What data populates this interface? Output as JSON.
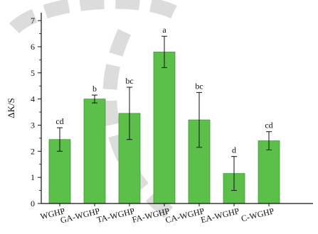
{
  "chart_data": {
    "type": "bar",
    "categories": [
      "WGHP",
      "GA-WGHP",
      "TA-WGHP",
      "FA-WGHP",
      "CA-WGHP",
      "EA-WGHP",
      "C-WGHP"
    ],
    "series": [
      {
        "values": [
          2.45,
          4.0,
          3.45,
          5.8,
          3.2,
          1.15,
          2.4
        ],
        "error": [
          0.45,
          0.15,
          1.0,
          0.6,
          1.05,
          0.65,
          0.35
        ],
        "labels": [
          "cd",
          "b",
          "bc",
          "a",
          "bc",
          "d",
          "cd"
        ]
      }
    ],
    "title": "",
    "xlabel": "",
    "ylabel": "ΔK/S",
    "ylim": [
      0,
      7.3
    ],
    "yticks": [
      0,
      1,
      2,
      3,
      4,
      5,
      6,
      7
    ],
    "grid": false,
    "legend": "none",
    "bar_color": "#5cbf4a",
    "bar_edge_color": "#3f9b35",
    "watermark_color": "#d8d8d8"
  }
}
